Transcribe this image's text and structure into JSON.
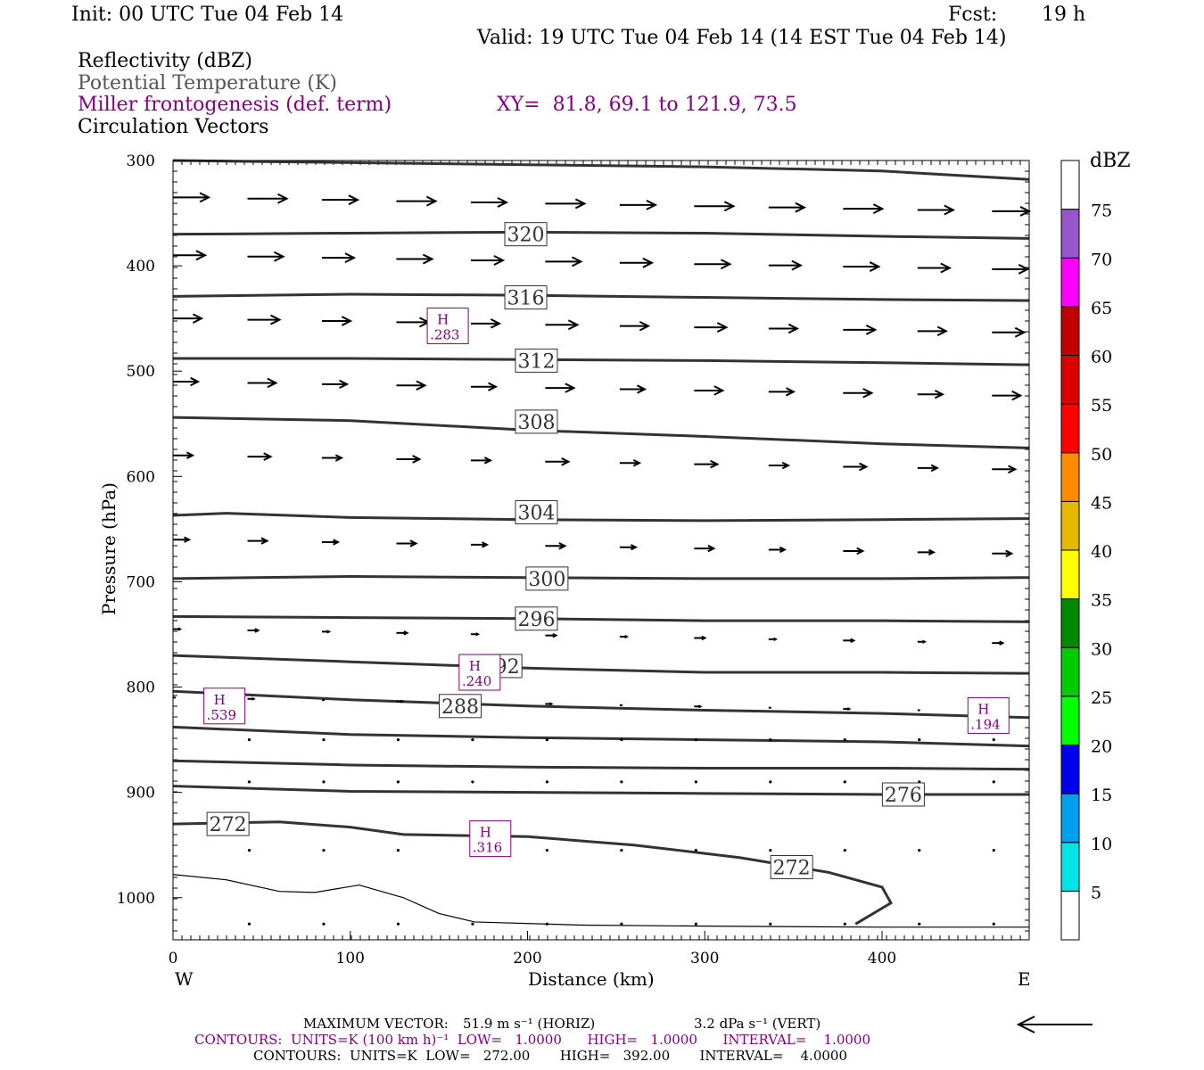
{
  "header": {
    "init": "Init: 00 UTC Tue 04 Feb 14",
    "fcst_label": "Fcst:",
    "fcst_value": "19 h",
    "valid": "Valid: 19 UTC Tue 04 Feb 14 (14 EST Tue 04 Feb 14)"
  },
  "fields": {
    "reflectivity": "Reflectivity (dBZ)",
    "theta": "Potential Temperature (K)",
    "miller": "Miller frontogenesis (def. term)",
    "xy": "XY=  81.8, 69.1 to 121.9, 73.5",
    "vectors": "Circulation Vectors"
  },
  "colors": {
    "theta_line": "#333333",
    "purple": "#800080",
    "vectors": "#000000"
  },
  "colorbar": {
    "unit": "dBZ",
    "bins": [
      {
        "label": "5",
        "color": "#00e5e5"
      },
      {
        "label": "10",
        "color": "#00a0f0"
      },
      {
        "label": "15",
        "color": "#0000ee"
      },
      {
        "label": "20",
        "color": "#00ff00"
      },
      {
        "label": "25",
        "color": "#00cc00"
      },
      {
        "label": "30",
        "color": "#008800"
      },
      {
        "label": "35",
        "color": "#ffff00"
      },
      {
        "label": "40",
        "color": "#e6b800"
      },
      {
        "label": "45",
        "color": "#ff8c00"
      },
      {
        "label": "50",
        "color": "#ff0000"
      },
      {
        "label": "55",
        "color": "#dd0000"
      },
      {
        "label": "60",
        "color": "#c00000"
      },
      {
        "label": "65",
        "color": "#ff00ff"
      },
      {
        "label": "70",
        "color": "#9955cc"
      },
      {
        "label": "75",
        "color": "#ffffff"
      }
    ]
  },
  "footer": {
    "max_vector_label": "MAXIMUM VECTOR:",
    "max_vector_h": "51.9 m s⁻¹ (HORIZ)",
    "max_vector_v": "3.2 dPa s⁻¹ (VERT)",
    "contours1": "CONTOURS:  UNITS=K (100 km h)⁻¹  LOW=   1.0000      HIGH=   1.0000      INTERVAL=    1.0000",
    "contours2": "CONTOURS:  UNITS=K  LOW=   272.00       HIGH=   392.00       INTERVAL=    4.0000"
  },
  "chart_data": {
    "type": "line",
    "xlabel": "Distance (km)",
    "ylabel": "Pressure (hPa)",
    "xlim": [
      0,
      483
    ],
    "ylim": [
      1040,
      300
    ],
    "x_ticks": [
      "0",
      "100",
      "200",
      "300",
      "400"
    ],
    "y_ticks": [
      "300",
      "400",
      "500",
      "600",
      "700",
      "800",
      "900",
      "1000"
    ],
    "x_left_label": "W",
    "x_right_label": "E",
    "theta_contours": [
      {
        "label": "",
        "label_at": null,
        "points": [
          [
            0,
            300
          ],
          [
            100,
            302
          ],
          [
            200,
            304
          ],
          [
            300,
            306
          ],
          [
            400,
            310
          ],
          [
            483,
            318
          ]
        ]
      },
      {
        "label": "320",
        "label_at": [
          199,
          370
        ],
        "points": [
          [
            0,
            370
          ],
          [
            100,
            369
          ],
          [
            200,
            368
          ],
          [
            300,
            369
          ],
          [
            400,
            372
          ],
          [
            483,
            374
          ]
        ]
      },
      {
        "label": "316",
        "label_at": [
          199,
          430
        ],
        "points": [
          [
            0,
            429
          ],
          [
            100,
            427
          ],
          [
            200,
            428
          ],
          [
            300,
            430
          ],
          [
            400,
            432
          ],
          [
            483,
            433
          ]
        ]
      },
      {
        "label": "312",
        "label_at": [
          205,
          490
        ],
        "points": [
          [
            0,
            488
          ],
          [
            100,
            488
          ],
          [
            200,
            489
          ],
          [
            300,
            490
          ],
          [
            400,
            492
          ],
          [
            483,
            494
          ]
        ]
      },
      {
        "label": "308",
        "label_at": [
          205,
          548
        ],
        "points": [
          [
            0,
            544
          ],
          [
            100,
            547
          ],
          [
            200,
            556
          ],
          [
            300,
            562
          ],
          [
            400,
            569
          ],
          [
            483,
            573
          ]
        ]
      },
      {
        "label": "304",
        "label_at": [
          205,
          634
        ],
        "points": [
          [
            0,
            637
          ],
          [
            30,
            635
          ],
          [
            100,
            639
          ],
          [
            200,
            641
          ],
          [
            300,
            642
          ],
          [
            400,
            641
          ],
          [
            483,
            640
          ]
        ]
      },
      {
        "label": "300",
        "label_at": [
          211,
          697
        ],
        "points": [
          [
            0,
            697
          ],
          [
            100,
            695
          ],
          [
            200,
            696
          ],
          [
            300,
            697
          ],
          [
            400,
            697
          ],
          [
            483,
            696
          ]
        ]
      },
      {
        "label": "296",
        "label_at": [
          205,
          735
        ],
        "points": [
          [
            0,
            733
          ],
          [
            100,
            734
          ],
          [
            200,
            735
          ],
          [
            300,
            737
          ],
          [
            400,
            737
          ],
          [
            483,
            738
          ]
        ]
      },
      {
        "label": "292",
        "label_at": [
          185,
          780
        ],
        "points": [
          [
            0,
            770
          ],
          [
            100,
            776
          ],
          [
            200,
            782
          ],
          [
            300,
            786
          ],
          [
            400,
            786
          ],
          [
            483,
            787
          ]
        ]
      },
      {
        "label": "288",
        "label_at": [
          162,
          818
        ],
        "points": [
          [
            0,
            804
          ],
          [
            100,
            812
          ],
          [
            200,
            818
          ],
          [
            300,
            822
          ],
          [
            400,
            825
          ],
          [
            483,
            829
          ]
        ]
      },
      {
        "label": "",
        "label_at": null,
        "points": [
          [
            0,
            838
          ],
          [
            100,
            845
          ],
          [
            200,
            848
          ],
          [
            300,
            850
          ],
          [
            400,
            852
          ],
          [
            483,
            856
          ]
        ]
      },
      {
        "label": "",
        "label_at": null,
        "points": [
          [
            0,
            870
          ],
          [
            100,
            874
          ],
          [
            200,
            876
          ],
          [
            300,
            877
          ],
          [
            400,
            877
          ],
          [
            483,
            878
          ]
        ]
      },
      {
        "label": "276",
        "label_at": [
          412,
          902
        ],
        "points": [
          [
            0,
            894
          ],
          [
            100,
            899
          ],
          [
            200,
            900
          ],
          [
            300,
            901
          ],
          [
            400,
            902
          ],
          [
            483,
            902
          ]
        ]
      },
      {
        "label": "272",
        "label_at": [
          31,
          930
        ],
        "points": [
          [
            0,
            930
          ],
          [
            60,
            928
          ],
          [
            100,
            933
          ],
          [
            130,
            940
          ],
          [
            200,
            942
          ],
          [
            260,
            950
          ],
          [
            320,
            962
          ],
          [
            370,
            976
          ],
          [
            400,
            990
          ],
          [
            405,
            1005
          ],
          [
            385,
            1025
          ]
        ]
      }
    ],
    "extra_label": {
      "label": "272",
      "label_at": [
        349,
        971
      ]
    },
    "reflectivity_outline": [
      [
        0,
        978
      ],
      [
        30,
        983
      ],
      [
        60,
        994
      ],
      [
        80,
        995
      ],
      [
        105,
        988
      ],
      [
        130,
        1000
      ],
      [
        150,
        1015
      ],
      [
        170,
        1023
      ],
      [
        230,
        1026
      ],
      [
        300,
        1027
      ],
      [
        400,
        1028
      ],
      [
        483,
        1028
      ]
    ],
    "frontogenesis_highs": [
      {
        "label": "H",
        "value": ".283",
        "x": 155,
        "y": 457
      },
      {
        "label": "H",
        "value": ".240",
        "x": 173,
        "y": 786
      },
      {
        "label": "H",
        "value": ".539",
        "x": 29,
        "y": 818
      },
      {
        "label": "H",
        "value": ".194",
        "x": 460,
        "y": 827
      },
      {
        "label": "H",
        "value": ".316",
        "x": 179,
        "y": 944
      }
    ],
    "vector_rows": [
      {
        "p": 335,
        "len": 40
      },
      {
        "p": 390,
        "len": 36
      },
      {
        "p": 450,
        "len": 32
      },
      {
        "p": 510,
        "len": 28
      },
      {
        "p": 580,
        "len": 22
      },
      {
        "p": 660,
        "len": 18
      },
      {
        "p": 745,
        "len": 8
      },
      {
        "p": 810,
        "len": 3
      }
    ]
  }
}
